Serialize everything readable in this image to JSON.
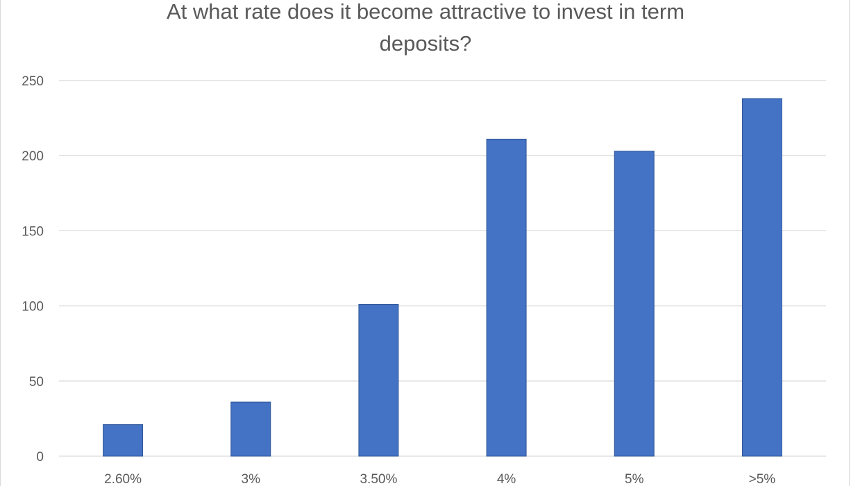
{
  "chart_data": {
    "type": "bar",
    "title_lines": [
      "At what rate does it become attractive to invest in term",
      "deposits?"
    ],
    "categories": [
      "2.60%",
      "3%",
      "3.50%",
      "4%",
      "5%",
      ">5%"
    ],
    "values": [
      21,
      36,
      101,
      211,
      203,
      238
    ],
    "ylim": [
      0,
      250
    ],
    "yticks": [
      0,
      50,
      100,
      150,
      200,
      250
    ],
    "grid": true,
    "legend": "none",
    "colors": {
      "bar": "#4472c4",
      "bar_edge": "#2f5597",
      "grid": "#d9d9d9",
      "text": "#595959"
    }
  }
}
